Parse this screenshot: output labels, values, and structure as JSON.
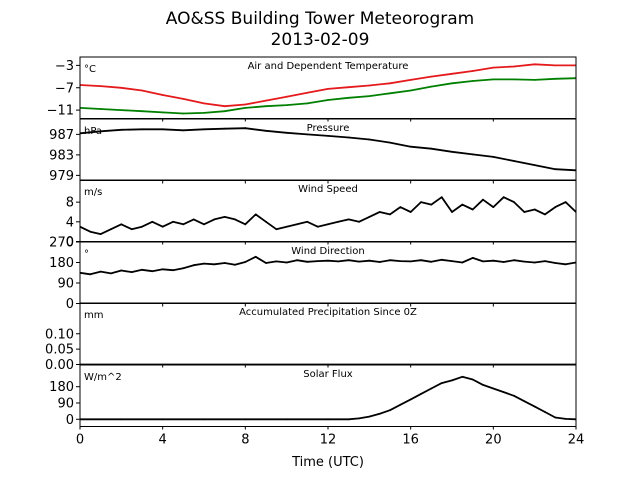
{
  "title": "AO&SS Building Tower Meteorogram",
  "subtitle": "2013-02-09",
  "xlabel": "Time (UTC)",
  "x_ticks": [
    "0",
    "4",
    "8",
    "12",
    "16",
    "20",
    "24"
  ],
  "chart_data": [
    {
      "type": "line",
      "title": "Air and Dependent Temperature",
      "unit": "°C",
      "ylim": [
        -12.5,
        -1.5
      ],
      "y_ticks": [
        -3,
        -7,
        -11
      ],
      "y_tick_labels": [
        "−3",
        "−7",
        "−11"
      ],
      "series": [
        {
          "name": "air",
          "color": "#e41a1c",
          "x": [
            0,
            1,
            2,
            3,
            4,
            5,
            6,
            7,
            8,
            9,
            10,
            11,
            12,
            13,
            14,
            15,
            16,
            17,
            18,
            19,
            20,
            21,
            22,
            23,
            24
          ],
          "values": [
            -6.5,
            -6.7,
            -7.0,
            -7.5,
            -8.3,
            -9.0,
            -9.8,
            -10.3,
            -10.0,
            -9.3,
            -8.6,
            -7.9,
            -7.2,
            -6.9,
            -6.6,
            -6.2,
            -5.6,
            -5.0,
            -4.5,
            -4.0,
            -3.4,
            -3.2,
            -2.8,
            -3.0,
            -3.0
          ]
        },
        {
          "name": "dewpoint",
          "color": "#008000",
          "x": [
            0,
            1,
            2,
            3,
            4,
            5,
            6,
            7,
            8,
            9,
            10,
            11,
            12,
            13,
            14,
            15,
            16,
            17,
            18,
            19,
            20,
            21,
            22,
            23,
            24
          ],
          "values": [
            -10.6,
            -10.8,
            -11.0,
            -11.2,
            -11.4,
            -11.6,
            -11.5,
            -11.2,
            -10.6,
            -10.3,
            -10.1,
            -9.8,
            -9.2,
            -8.8,
            -8.5,
            -8.0,
            -7.5,
            -6.8,
            -6.2,
            -5.8,
            -5.5,
            -5.5,
            -5.6,
            -5.4,
            -5.3
          ]
        }
      ]
    },
    {
      "type": "line",
      "title": "Pressure",
      "unit": "hPa",
      "ylim": [
        978,
        990
      ],
      "y_ticks": [
        987,
        983,
        979
      ],
      "y_tick_labels": [
        "987",
        "983",
        "979"
      ],
      "series": [
        {
          "name": "pressure",
          "color": "#000000",
          "x": [
            0,
            1,
            2,
            3,
            4,
            5,
            6,
            7,
            8,
            9,
            10,
            11,
            12,
            13,
            14,
            15,
            16,
            17,
            18,
            19,
            20,
            21,
            22,
            23,
            24
          ],
          "values": [
            987.2,
            987.6,
            987.9,
            988.0,
            988.0,
            987.8,
            988.0,
            988.1,
            988.2,
            987.7,
            987.3,
            987.0,
            986.7,
            986.4,
            986.0,
            985.4,
            984.6,
            984.2,
            983.6,
            983.1,
            982.6,
            981.8,
            981.0,
            980.2,
            980.0
          ]
        }
      ]
    },
    {
      "type": "line",
      "title": "Wind Speed",
      "unit": "m/s",
      "ylim": [
        0,
        12.5
      ],
      "y_ticks": [
        8,
        4,
        0
      ],
      "y_tick_labels": [
        "8",
        "4",
        "0"
      ],
      "series": [
        {
          "name": "wind speed",
          "color": "#000000",
          "x": [
            0,
            0.5,
            1,
            1.5,
            2,
            2.5,
            3,
            3.5,
            4,
            4.5,
            5,
            5.5,
            6,
            6.5,
            7,
            7.5,
            8,
            8.5,
            9,
            9.5,
            10,
            10.5,
            11,
            11.5,
            12,
            12.5,
            13,
            13.5,
            14,
            14.5,
            15,
            15.5,
            16,
            16.5,
            17,
            17.5,
            18,
            18.5,
            19,
            19.5,
            20,
            20.5,
            21,
            21.5,
            22,
            22.5,
            23,
            23.5,
            24
          ],
          "values": [
            3.0,
            2.0,
            1.5,
            2.5,
            3.5,
            2.5,
            3.0,
            4.0,
            3.0,
            4.0,
            3.5,
            4.5,
            3.5,
            4.5,
            5.0,
            4.5,
            3.5,
            5.5,
            4.0,
            2.5,
            3.0,
            3.5,
            4.0,
            3.0,
            3.5,
            4.0,
            4.5,
            4.0,
            5.0,
            6.0,
            5.5,
            7.0,
            6.0,
            8.0,
            7.5,
            9.0,
            6.0,
            7.5,
            6.5,
            8.5,
            7.0,
            9.0,
            8.0,
            6.0,
            6.5,
            5.5,
            7.0,
            8.0,
            6.0
          ]
        }
      ]
    },
    {
      "type": "line",
      "title": "Wind Direction",
      "unit": "°",
      "ylim": [
        0,
        270
      ],
      "y_ticks": [
        270,
        180,
        90,
        0
      ],
      "y_tick_labels": [
        "270",
        "180",
        "90",
        "0"
      ],
      "series": [
        {
          "name": "wind direction",
          "color": "#000000",
          "x": [
            0,
            0.5,
            1,
            1.5,
            2,
            2.5,
            3,
            3.5,
            4,
            4.5,
            5,
            5.5,
            6,
            6.5,
            7,
            7.5,
            8,
            8.5,
            9,
            9.5,
            10,
            10.5,
            11,
            11.5,
            12,
            12.5,
            13,
            13.5,
            14,
            14.5,
            15,
            15.5,
            16,
            16.5,
            17,
            17.5,
            18,
            18.5,
            19,
            19.5,
            20,
            20.5,
            21,
            21.5,
            22,
            22.5,
            23,
            23.5,
            24
          ],
          "values": [
            135,
            128,
            140,
            132,
            145,
            138,
            148,
            142,
            150,
            146,
            155,
            168,
            175,
            172,
            178,
            170,
            182,
            205,
            178,
            185,
            180,
            190,
            183,
            186,
            188,
            185,
            190,
            184,
            188,
            182,
            190,
            186,
            185,
            190,
            183,
            192,
            186,
            180,
            200,
            185,
            188,
            182,
            190,
            184,
            180,
            186,
            178,
            172,
            180
          ]
        }
      ]
    },
    {
      "type": "line",
      "title": "Accumulated Precipitation Since 0Z",
      "unit": "mm",
      "ylim": [
        0,
        0.2
      ],
      "y_ticks": [
        0.1,
        0.05,
        0.0
      ],
      "y_tick_labels": [
        "0.10",
        "0.05",
        "0.00"
      ],
      "series": [
        {
          "name": "precipitation",
          "color": "#000000",
          "x": [
            0,
            24
          ],
          "values": [
            0,
            0
          ]
        }
      ]
    },
    {
      "type": "line",
      "title": "Solar Flux",
      "unit": "W/m^2",
      "ylim": [
        -40,
        300
      ],
      "y_ticks": [
        180,
        90,
        0
      ],
      "y_tick_labels": [
        "180",
        "90",
        "0"
      ],
      "series": [
        {
          "name": "solar flux",
          "color": "#000000",
          "x": [
            0,
            2,
            4,
            6,
            8,
            10,
            12,
            13,
            13.5,
            14,
            14.5,
            15,
            15.5,
            16,
            16.5,
            17,
            17.5,
            18,
            18.5,
            19,
            19.5,
            20,
            20.5,
            21,
            21.5,
            22,
            22.5,
            23,
            23.5,
            24
          ],
          "values": [
            0,
            0,
            0,
            0,
            0,
            0,
            0,
            0,
            5,
            15,
            30,
            50,
            80,
            110,
            140,
            170,
            200,
            215,
            235,
            220,
            190,
            170,
            150,
            130,
            100,
            70,
            40,
            10,
            2,
            0
          ]
        }
      ]
    }
  ]
}
